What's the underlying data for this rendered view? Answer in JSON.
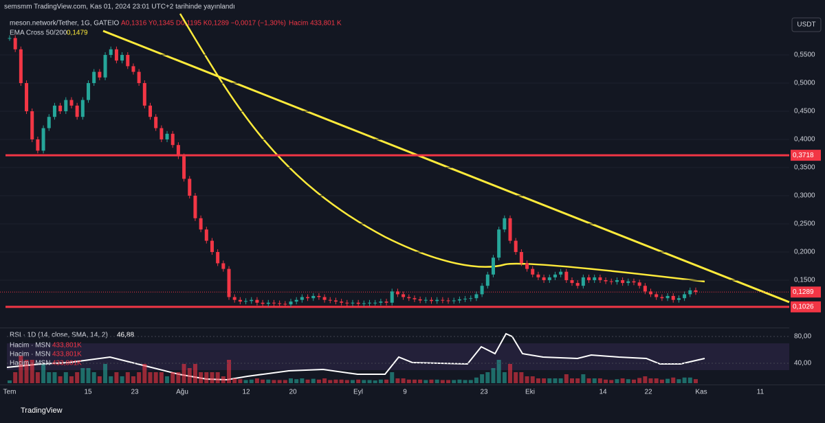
{
  "header": "semsmm TradingView.com, Kas 01, 2024 23:01 UTC+2 tarihinde yayınlandı",
  "legend": {
    "symbol": "meson.network/Tether, 1G, GATEIO",
    "ohlc": "A0,1316 Y0,1345 D0,1195 K0,1289 −0,0017 (−1,30%)",
    "volume": "Hacim 433,801 K",
    "ema": "EMA Cross 50/200",
    "ema_value": "0,1479"
  },
  "currency": "USDT",
  "price_ticks": [
    {
      "value": 0.55,
      "label": "0,5500"
    },
    {
      "value": 0.5,
      "label": "0,5000"
    },
    {
      "value": 0.45,
      "label": "0,4500"
    },
    {
      "value": 0.4,
      "label": "0,4000"
    },
    {
      "value": 0.35,
      "label": "0,3500"
    },
    {
      "value": 0.3,
      "label": "0,3000"
    },
    {
      "value": 0.25,
      "label": "0,2500"
    },
    {
      "value": 0.2,
      "label": "0,2000"
    },
    {
      "value": 0.15,
      "label": "0,1500"
    }
  ],
  "levels": [
    {
      "value": 0.3718,
      "label": "0,3718"
    },
    {
      "value": 0.1026,
      "label": "0,1026"
    }
  ],
  "last_price": {
    "value": 0.1289,
    "label": "0,1289"
  },
  "x_labels": [
    "Tem",
    "15",
    "23",
    "Ağu",
    "12",
    "20",
    "Eyl",
    "9",
    "23",
    "Eki",
    "14",
    "22",
    "Kas",
    "11"
  ],
  "closes": [
    0.58,
    0.56,
    0.5,
    0.45,
    0.4,
    0.38,
    0.42,
    0.44,
    0.46,
    0.45,
    0.47,
    0.46,
    0.44,
    0.47,
    0.5,
    0.52,
    0.51,
    0.55,
    0.56,
    0.54,
    0.55,
    0.53,
    0.52,
    0.5,
    0.46,
    0.44,
    0.42,
    0.4,
    0.41,
    0.39,
    0.37,
    0.33,
    0.3,
    0.26,
    0.24,
    0.22,
    0.2,
    0.18,
    0.17,
    0.12,
    0.115,
    0.112,
    0.113,
    0.115,
    0.11,
    0.108,
    0.11,
    0.109,
    0.108,
    0.107,
    0.112,
    0.115,
    0.12,
    0.118,
    0.122,
    0.12,
    0.115,
    0.114,
    0.112,
    0.11,
    0.109,
    0.11,
    0.108,
    0.109,
    0.11,
    0.11,
    0.112,
    0.11,
    0.13,
    0.125,
    0.12,
    0.118,
    0.116,
    0.114,
    0.115,
    0.113,
    0.115,
    0.114,
    0.113,
    0.114,
    0.116,
    0.117,
    0.118,
    0.125,
    0.14,
    0.16,
    0.19,
    0.24,
    0.26,
    0.22,
    0.2,
    0.18,
    0.17,
    0.16,
    0.155,
    0.15,
    0.155,
    0.16,
    0.165,
    0.15,
    0.145,
    0.14,
    0.155,
    0.15,
    0.155,
    0.15,
    0.148,
    0.147,
    0.15,
    0.145,
    0.148,
    0.146,
    0.14,
    0.13,
    0.125,
    0.12,
    0.118,
    0.122,
    0.115,
    0.118,
    0.125,
    0.132,
    0.1289
  ],
  "rsi": {
    "title": "RSI · 1D (14, close, SMA, 14, 2)",
    "value": "46,88",
    "ticks": [
      {
        "value": 80,
        "label": "80,00"
      },
      {
        "value": 40,
        "label": "40,00"
      }
    ]
  },
  "volume_legend": [
    {
      "name": "Hacim · MSN",
      "value": "433,801K"
    },
    {
      "name": "Hacim · MSN",
      "value": "433,801K"
    },
    {
      "name": "Hacim · MSN",
      "value": "433,801K"
    }
  ],
  "footer": "TradingView"
}
